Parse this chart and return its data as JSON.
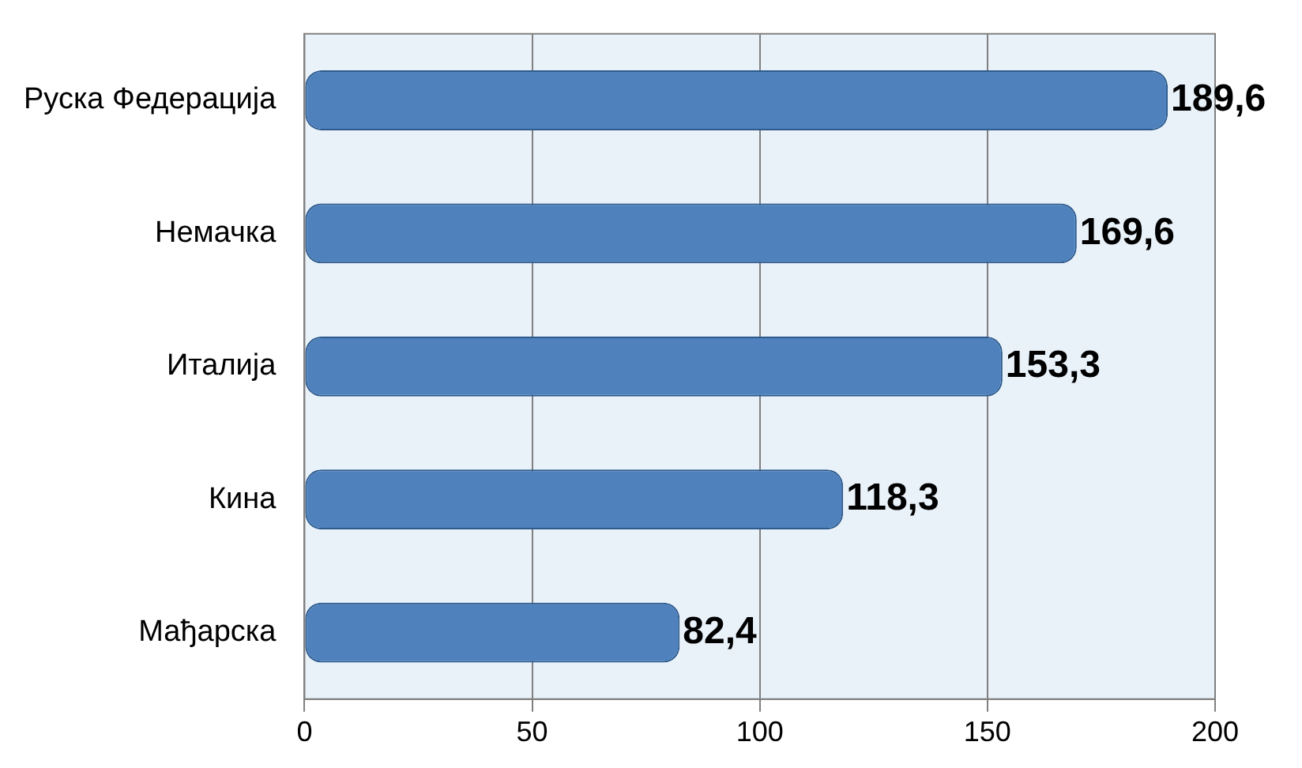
{
  "chart_data": {
    "type": "bar",
    "orientation": "horizontal",
    "categories": [
      "Руска Федерација",
      "Немачка",
      "Италија",
      "Кина",
      "Мађарска"
    ],
    "values": [
      189.6,
      169.6,
      153.3,
      118.3,
      82.4
    ],
    "value_labels": [
      "189,6",
      "169,6",
      "153,3",
      "118,3",
      "82,4"
    ],
    "color": "#4f81bd",
    "xlim": [
      0,
      200
    ],
    "xticks": [
      0,
      50,
      100,
      150,
      200
    ],
    "grid": "x",
    "legend": false
  }
}
